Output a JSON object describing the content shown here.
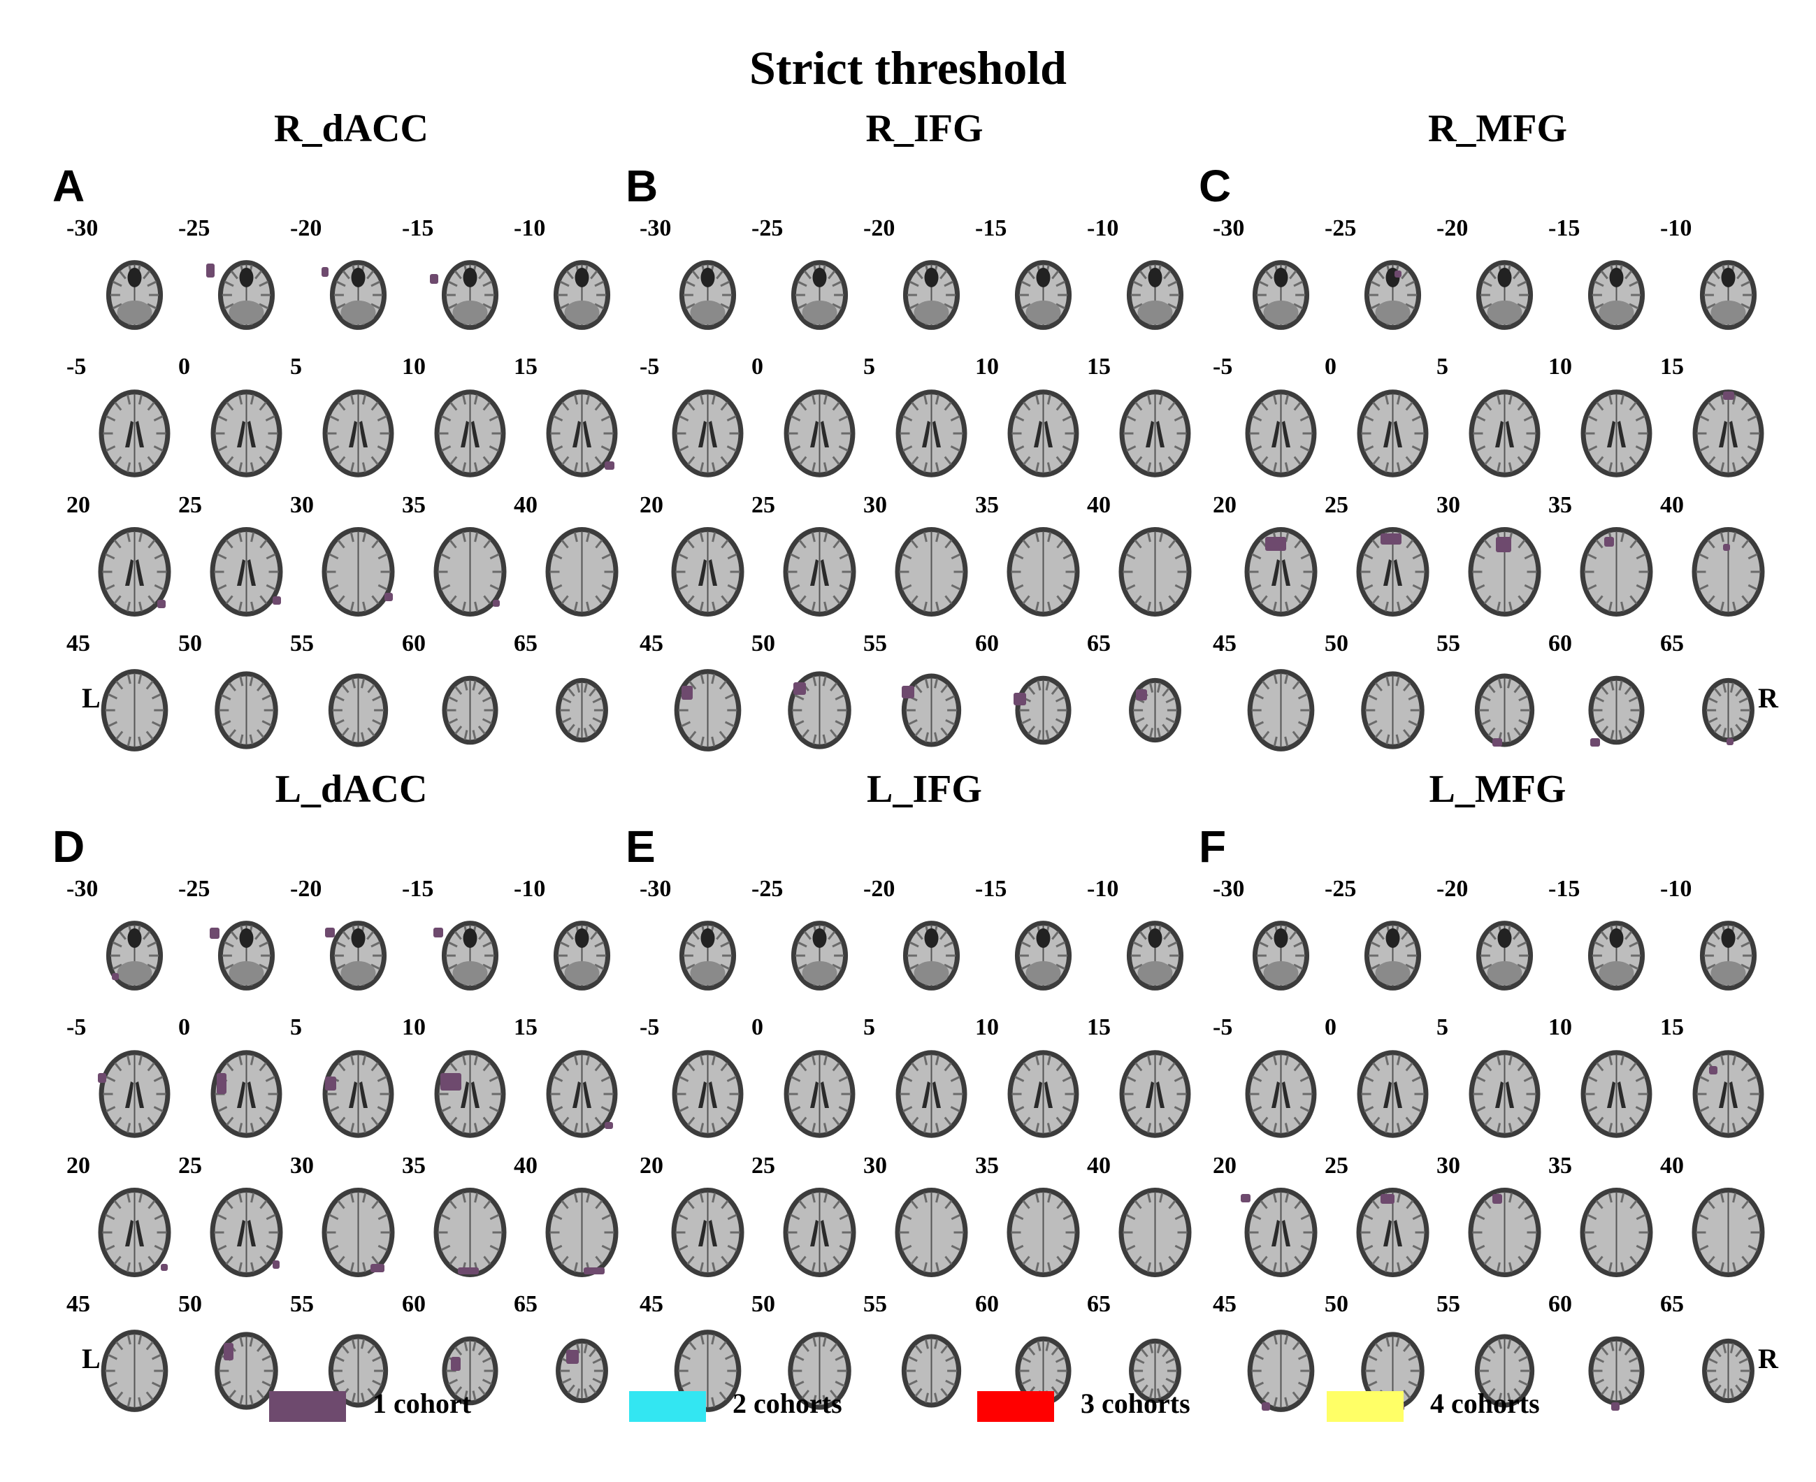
{
  "figure_title": "Strict threshold",
  "colors": {
    "tissue_dark": "#3c3c3c",
    "tissue_light": "#bdbdbd",
    "marker": "#6e4a6e"
  },
  "slice_labels": [
    "-30",
    "-25",
    "-20",
    "-15",
    "-10",
    "-5",
    "0",
    "5",
    "10",
    "15",
    "20",
    "25",
    "30",
    "35",
    "40",
    "45",
    "50",
    "55",
    "60",
    "65"
  ],
  "panels": [
    {
      "letter": "A",
      "title": "R_dACC",
      "left_label": "L",
      "right_label": ""
    },
    {
      "letter": "B",
      "title": "R_IFG",
      "left_label": "",
      "right_label": ""
    },
    {
      "letter": "C",
      "title": "R_MFG",
      "left_label": "",
      "right_label": "R"
    },
    {
      "letter": "D",
      "title": "L_dACC",
      "left_label": "L",
      "right_label": ""
    },
    {
      "letter": "E",
      "title": "L_IFG",
      "left_label": "",
      "right_label": ""
    },
    {
      "letter": "F",
      "title": "L_MFG",
      "left_label": "",
      "right_label": "R"
    }
  ],
  "legend": [
    {
      "label": "1 cohort",
      "color": "#6e4a6e"
    },
    {
      "label": "2 cohorts",
      "color": "#33e6f2"
    },
    {
      "label": "3 cohorts",
      "color": "#ff0000"
    },
    {
      "label": "4 cohorts",
      "color": "#ffff66"
    }
  ]
}
